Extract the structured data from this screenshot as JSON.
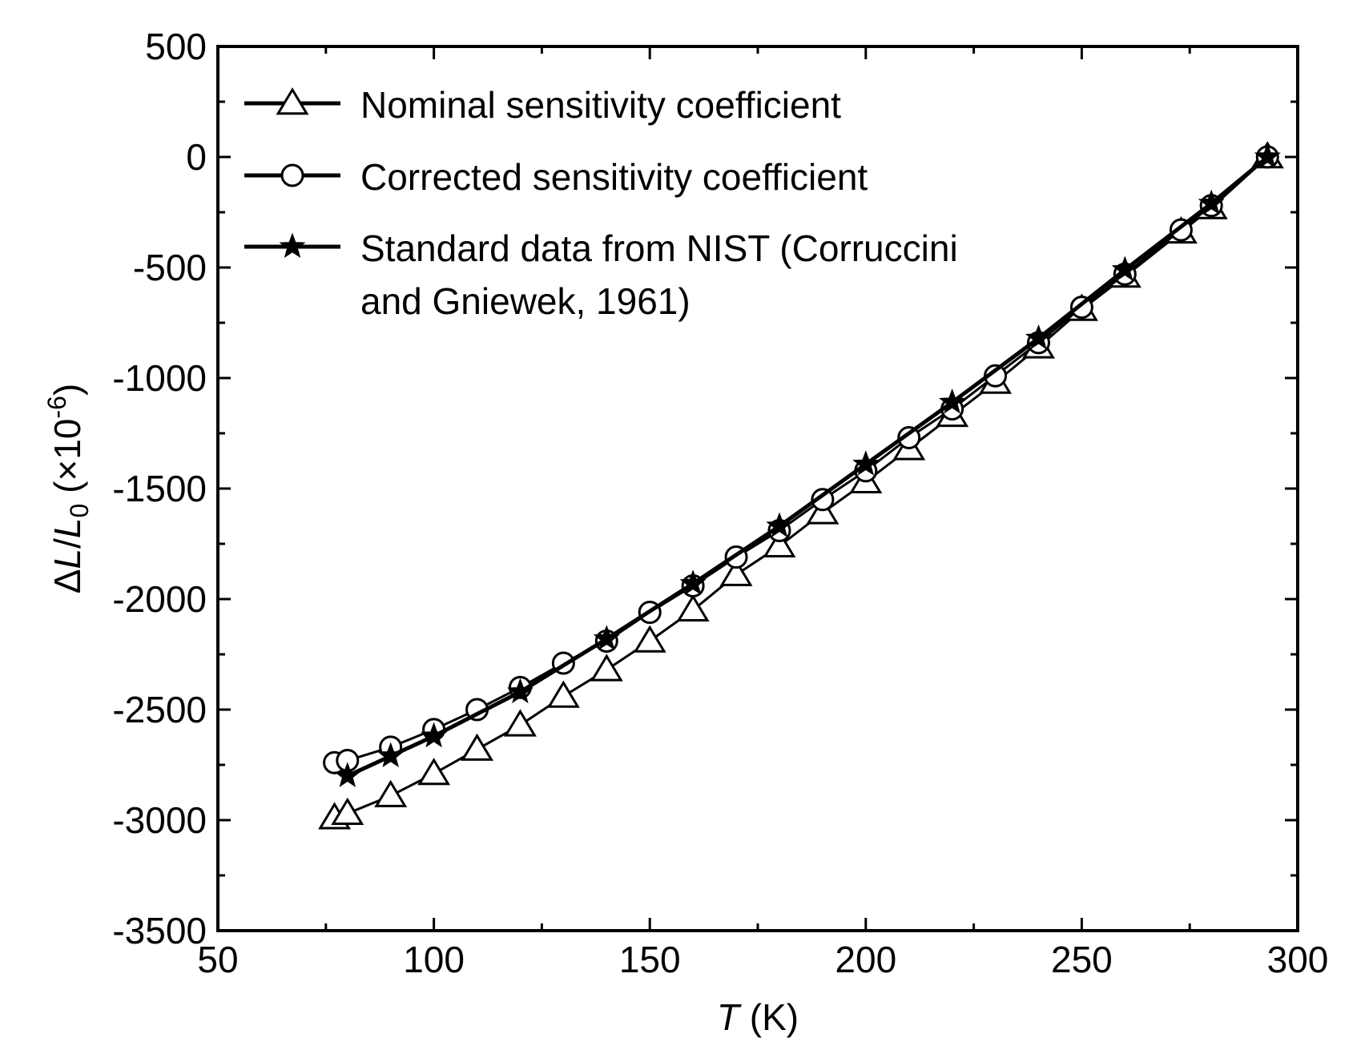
{
  "chart_data": {
    "type": "line",
    "title": "",
    "xlabel": {
      "symbol": "T",
      "unit": " (K)"
    },
    "ylabel": {
      "prefix": "Δ",
      "symbol": "L",
      "slash": "/",
      "symbol2": "L",
      "sub": "0",
      "unit": " (×10",
      "exp": "-6",
      "close": ")"
    },
    "xlim": [
      50,
      300
    ],
    "ylim": [
      -3500,
      500
    ],
    "x_ticks": [
      50,
      100,
      150,
      200,
      250,
      300
    ],
    "y_ticks": [
      500,
      0,
      -500,
      -1000,
      -1500,
      -2000,
      -2500,
      -3000,
      -3500
    ],
    "x_tick_labels": [
      "50",
      "100",
      "150",
      "200",
      "250",
      "300"
    ],
    "y_tick_labels": [
      "500",
      "0",
      "-500",
      "-1000",
      "-1500",
      "-2000",
      "-2500",
      "-3000",
      "-3500"
    ],
    "legend_position": "top-left",
    "series": [
      {
        "name": "Nominal sensitivity coefficient",
        "marker": "triangle",
        "x": [
          77,
          80,
          90,
          100,
          110,
          120,
          130,
          140,
          150,
          160,
          170,
          180,
          190,
          200,
          210,
          220,
          230,
          240,
          250,
          260,
          273,
          280,
          293
        ],
        "y": [
          -2990,
          -2970,
          -2890,
          -2790,
          -2680,
          -2570,
          -2440,
          -2320,
          -2190,
          -2050,
          -1890,
          -1760,
          -1610,
          -1470,
          -1320,
          -1170,
          -1020,
          -860,
          -690,
          -540,
          -340,
          -230,
          0
        ]
      },
      {
        "name": "Corrected sensitivity coefficient",
        "marker": "circle",
        "x": [
          77,
          80,
          90,
          100,
          110,
          120,
          130,
          140,
          150,
          160,
          170,
          180,
          190,
          200,
          210,
          220,
          230,
          240,
          250,
          260,
          273,
          280,
          293
        ],
        "y": [
          -2740,
          -2730,
          -2670,
          -2590,
          -2500,
          -2400,
          -2290,
          -2190,
          -2060,
          -1940,
          -1810,
          -1690,
          -1550,
          -1420,
          -1270,
          -1140,
          -990,
          -840,
          -680,
          -530,
          -330,
          -220,
          0
        ]
      },
      {
        "name": "Standard data from NIST (Corruccini and Gniewek, 1961)",
        "marker": "star",
        "x": [
          80,
          90,
          100,
          120,
          140,
          160,
          180,
          200,
          220,
          240,
          260,
          280,
          293
        ],
        "y": [
          -2800,
          -2710,
          -2620,
          -2420,
          -2180,
          -1930,
          -1670,
          -1390,
          -1110,
          -820,
          -510,
          -210,
          0
        ]
      }
    ],
    "legend": [
      {
        "lines": [
          "Nominal sensitivity coefficient"
        ],
        "marker": "triangle"
      },
      {
        "lines": [
          "Corrected sensitivity coefficient"
        ],
        "marker": "circle"
      },
      {
        "lines": [
          "Standard data from NIST (Corruccini",
          "and Gniewek, 1961)"
        ],
        "marker": "star"
      }
    ]
  }
}
